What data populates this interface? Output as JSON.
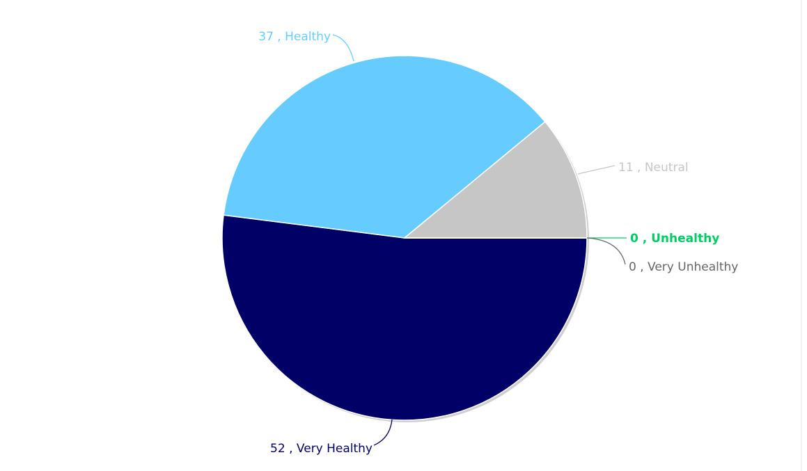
{
  "chart_data": {
    "type": "pie",
    "categories": [
      "Very Healthy",
      "Healthy",
      "Neutral",
      "Unhealthy",
      "Very Unhealthy"
    ],
    "values": [
      52,
      37,
      11,
      0,
      0
    ],
    "value_labels": [
      "52 , Very Healthy",
      "37 , Healthy",
      "11 , Neutral",
      "0 , Unhealthy",
      "0 , Very Unhealthy"
    ],
    "colors": [
      "#000066",
      "#66ccff",
      "#c6c6c6",
      "#00cc66",
      "#666666"
    ],
    "label_colors": [
      "#000066",
      "#66ccff",
      "#c6c6c6",
      "#00cc66",
      "#666666"
    ]
  }
}
